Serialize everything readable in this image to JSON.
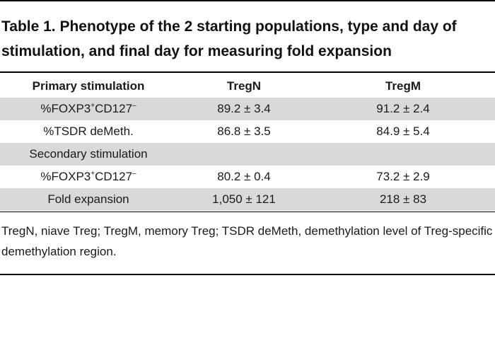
{
  "table": {
    "title": "Table 1. Phenotype of the 2 starting populations, type and day of stimulation, and final day for measuring fold expansion",
    "columns": [
      "Primary stimulation",
      "TregN",
      "TregM"
    ],
    "rows": [
      {
        "label_pre": "%FOXP3",
        "sup1": "+",
        "label_mid": "CD127",
        "sup2": "–",
        "tregn": "89.2 ± 3.4",
        "tregm": "91.2 ± 2.4",
        "shaded": true
      },
      {
        "label": "%TSDR deMeth.",
        "tregn": "86.8 ± 3.5",
        "tregm": "84.9 ± 5.4",
        "shaded": false
      },
      {
        "label": "Secondary stimulation",
        "tregn": "",
        "tregm": "",
        "shaded": true
      },
      {
        "label_pre": "%FOXP3",
        "sup1": "+",
        "label_mid": "CD127",
        "sup2": "–",
        "tregn": "80.2 ± 0.4",
        "tregm": "73.2 ± 2.9",
        "shaded": false
      },
      {
        "label": "Fold expansion",
        "tregn": "1,050 ± 121",
        "tregm": "218 ± 83",
        "shaded": true
      }
    ],
    "footnote": "TregN, niave Treg; TregM, memory Treg; TSDR deMeth, demethylation level of Treg-specific demethylation region."
  }
}
